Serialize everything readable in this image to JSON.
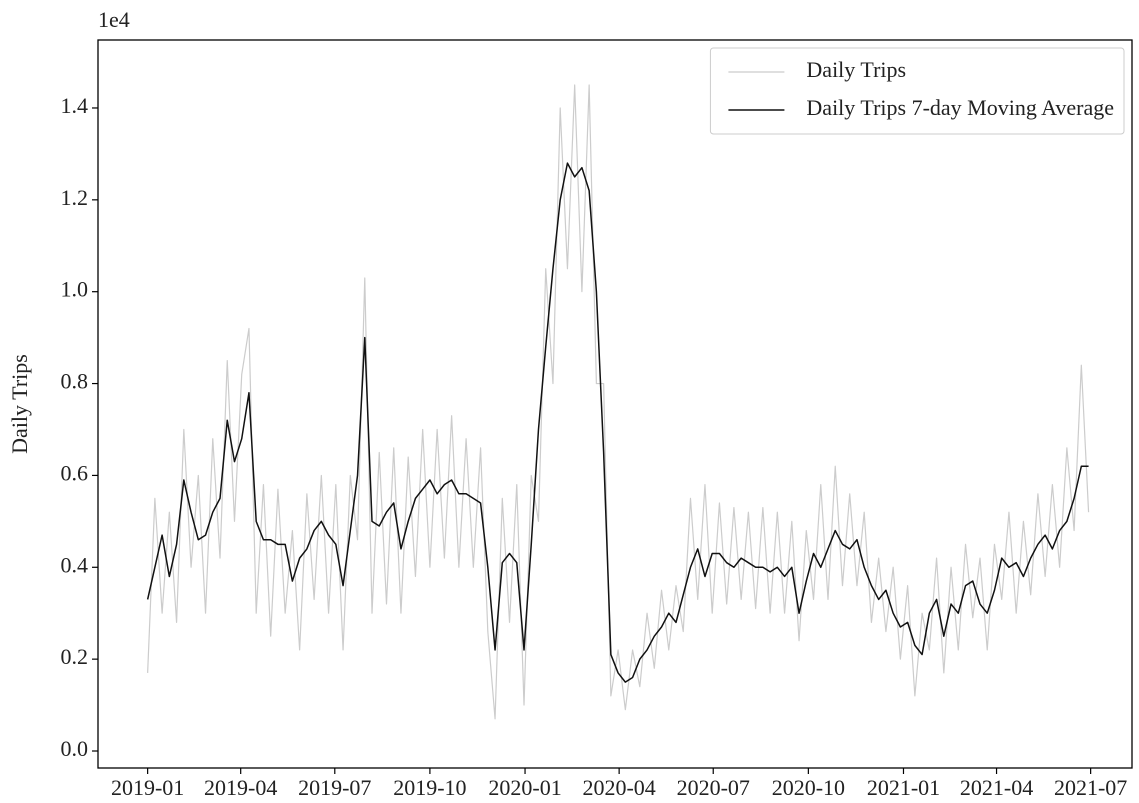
{
  "chart_data": {
    "type": "line",
    "y_label": "Daily Trips",
    "y_offset_label": "1e4",
    "x": [
      "2019-01-01",
      "2019-01-08",
      "2019-01-15",
      "2019-01-22",
      "2019-01-29",
      "2019-02-05",
      "2019-02-12",
      "2019-02-19",
      "2019-02-26",
      "2019-03-05",
      "2019-03-12",
      "2019-03-19",
      "2019-03-26",
      "2019-04-02",
      "2019-04-09",
      "2019-04-16",
      "2019-04-23",
      "2019-04-30",
      "2019-05-07",
      "2019-05-14",
      "2019-05-21",
      "2019-05-28",
      "2019-06-04",
      "2019-06-11",
      "2019-06-18",
      "2019-06-25",
      "2019-07-02",
      "2019-07-09",
      "2019-07-16",
      "2019-07-23",
      "2019-07-30",
      "2019-08-06",
      "2019-08-13",
      "2019-08-20",
      "2019-08-27",
      "2019-09-03",
      "2019-09-10",
      "2019-09-17",
      "2019-09-24",
      "2019-10-01",
      "2019-10-08",
      "2019-10-15",
      "2019-10-22",
      "2019-10-29",
      "2019-11-05",
      "2019-11-12",
      "2019-11-19",
      "2019-11-26",
      "2019-12-03",
      "2019-12-10",
      "2019-12-17",
      "2019-12-24",
      "2019-12-31",
      "2020-01-07",
      "2020-01-14",
      "2020-01-21",
      "2020-01-28",
      "2020-02-04",
      "2020-02-11",
      "2020-02-18",
      "2020-02-25",
      "2020-03-03",
      "2020-03-10",
      "2020-03-17",
      "2020-03-24",
      "2020-03-31",
      "2020-04-07",
      "2020-04-14",
      "2020-04-21",
      "2020-04-28",
      "2020-05-05",
      "2020-05-12",
      "2020-05-19",
      "2020-05-26",
      "2020-06-02",
      "2020-06-09",
      "2020-06-16",
      "2020-06-23",
      "2020-06-30",
      "2020-07-07",
      "2020-07-14",
      "2020-07-21",
      "2020-07-28",
      "2020-08-04",
      "2020-08-11",
      "2020-08-18",
      "2020-08-25",
      "2020-09-01",
      "2020-09-08",
      "2020-09-15",
      "2020-09-22",
      "2020-09-29",
      "2020-10-06",
      "2020-10-13",
      "2020-10-20",
      "2020-10-27",
      "2020-11-03",
      "2020-11-10",
      "2020-11-17",
      "2020-11-24",
      "2020-12-01",
      "2020-12-08",
      "2020-12-15",
      "2020-12-22",
      "2020-12-29",
      "2021-01-05",
      "2021-01-12",
      "2021-01-19",
      "2021-01-26",
      "2021-02-02",
      "2021-02-09",
      "2021-02-16",
      "2021-02-23",
      "2021-03-02",
      "2021-03-09",
      "2021-03-16",
      "2021-03-23",
      "2021-03-30",
      "2021-04-06",
      "2021-04-13",
      "2021-04-20",
      "2021-04-27",
      "2021-05-04",
      "2021-05-11",
      "2021-05-18",
      "2021-05-25",
      "2021-06-01",
      "2021-06-08",
      "2021-06-15",
      "2021-06-22",
      "2021-06-29"
    ],
    "series": [
      {
        "name": "Daily Trips",
        "color": "#cccccc",
        "width": 1.2,
        "values": [
          0.17,
          0.55,
          0.3,
          0.52,
          0.28,
          0.7,
          0.4,
          0.6,
          0.3,
          0.68,
          0.42,
          0.85,
          0.5,
          0.82,
          0.92,
          0.3,
          0.58,
          0.25,
          0.57,
          0.3,
          0.48,
          0.22,
          0.56,
          0.33,
          0.6,
          0.3,
          0.58,
          0.22,
          0.6,
          0.46,
          1.03,
          0.3,
          0.65,
          0.32,
          0.66,
          0.3,
          0.64,
          0.38,
          0.7,
          0.4,
          0.7,
          0.42,
          0.73,
          0.4,
          0.68,
          0.4,
          0.66,
          0.26,
          0.07,
          0.55,
          0.28,
          0.58,
          0.1,
          0.6,
          0.5,
          1.05,
          0.8,
          1.4,
          1.05,
          1.45,
          1.0,
          1.45,
          0.8,
          0.8,
          0.12,
          0.22,
          0.09,
          0.22,
          0.14,
          0.3,
          0.18,
          0.35,
          0.22,
          0.36,
          0.26,
          0.55,
          0.33,
          0.58,
          0.3,
          0.54,
          0.32,
          0.53,
          0.33,
          0.52,
          0.31,
          0.53,
          0.3,
          0.52,
          0.3,
          0.5,
          0.24,
          0.48,
          0.33,
          0.58,
          0.33,
          0.62,
          0.36,
          0.56,
          0.36,
          0.52,
          0.28,
          0.42,
          0.26,
          0.4,
          0.2,
          0.36,
          0.12,
          0.3,
          0.22,
          0.42,
          0.17,
          0.4,
          0.22,
          0.45,
          0.29,
          0.42,
          0.22,
          0.45,
          0.33,
          0.52,
          0.3,
          0.5,
          0.34,
          0.56,
          0.38,
          0.58,
          0.4,
          0.66,
          0.48,
          0.84,
          0.52
        ]
      },
      {
        "name": "Daily Trips 7-day Moving Average",
        "color": "#111111",
        "width": 1.5,
        "values": [
          0.33,
          0.4,
          0.47,
          0.38,
          0.45,
          0.59,
          0.52,
          0.46,
          0.47,
          0.52,
          0.55,
          0.72,
          0.63,
          0.68,
          0.78,
          0.5,
          0.46,
          0.46,
          0.45,
          0.45,
          0.37,
          0.42,
          0.44,
          0.48,
          0.5,
          0.47,
          0.45,
          0.36,
          0.48,
          0.6,
          0.9,
          0.5,
          0.49,
          0.52,
          0.54,
          0.44,
          0.5,
          0.55,
          0.57,
          0.59,
          0.56,
          0.58,
          0.59,
          0.56,
          0.56,
          0.55,
          0.54,
          0.4,
          0.22,
          0.41,
          0.43,
          0.41,
          0.22,
          0.45,
          0.7,
          0.88,
          1.05,
          1.2,
          1.28,
          1.25,
          1.27,
          1.22,
          1.0,
          0.65,
          0.21,
          0.17,
          0.15,
          0.16,
          0.2,
          0.22,
          0.25,
          0.27,
          0.3,
          0.28,
          0.34,
          0.4,
          0.44,
          0.38,
          0.43,
          0.43,
          0.41,
          0.4,
          0.42,
          0.41,
          0.4,
          0.4,
          0.39,
          0.4,
          0.38,
          0.4,
          0.3,
          0.37,
          0.43,
          0.4,
          0.44,
          0.48,
          0.45,
          0.44,
          0.46,
          0.4,
          0.36,
          0.33,
          0.35,
          0.3,
          0.27,
          0.28,
          0.23,
          0.21,
          0.3,
          0.33,
          0.25,
          0.32,
          0.3,
          0.36,
          0.37,
          0.32,
          0.3,
          0.35,
          0.42,
          0.4,
          0.41,
          0.38,
          0.42,
          0.45,
          0.47,
          0.44,
          0.48,
          0.5,
          0.55,
          0.62,
          0.62
        ]
      }
    ],
    "xlim": [
      "2018-11-14",
      "2021-08-10"
    ],
    "xticks": [
      {
        "value": "2019-01-01",
        "label": "2019-01"
      },
      {
        "value": "2019-04-01",
        "label": "2019-04"
      },
      {
        "value": "2019-07-01",
        "label": "2019-07"
      },
      {
        "value": "2019-10-01",
        "label": "2019-10"
      },
      {
        "value": "2020-01-01",
        "label": "2020-01"
      },
      {
        "value": "2020-04-01",
        "label": "2020-04"
      },
      {
        "value": "2020-07-01",
        "label": "2020-07"
      },
      {
        "value": "2020-10-01",
        "label": "2020-10"
      },
      {
        "value": "2021-01-01",
        "label": "2021-01"
      },
      {
        "value": "2021-04-01",
        "label": "2021-04"
      },
      {
        "value": "2021-07-01",
        "label": "2021-07"
      }
    ],
    "ylim": [
      -0.037,
      1.548
    ],
    "yticks": [
      {
        "value": 0,
        "label": "0.0"
      },
      0.2,
      0.4,
      0.6,
      0.8,
      {
        "value": 1,
        "label": "1.0"
      },
      1.2,
      1.4
    ],
    "grid": false,
    "legend": "upper right"
  }
}
